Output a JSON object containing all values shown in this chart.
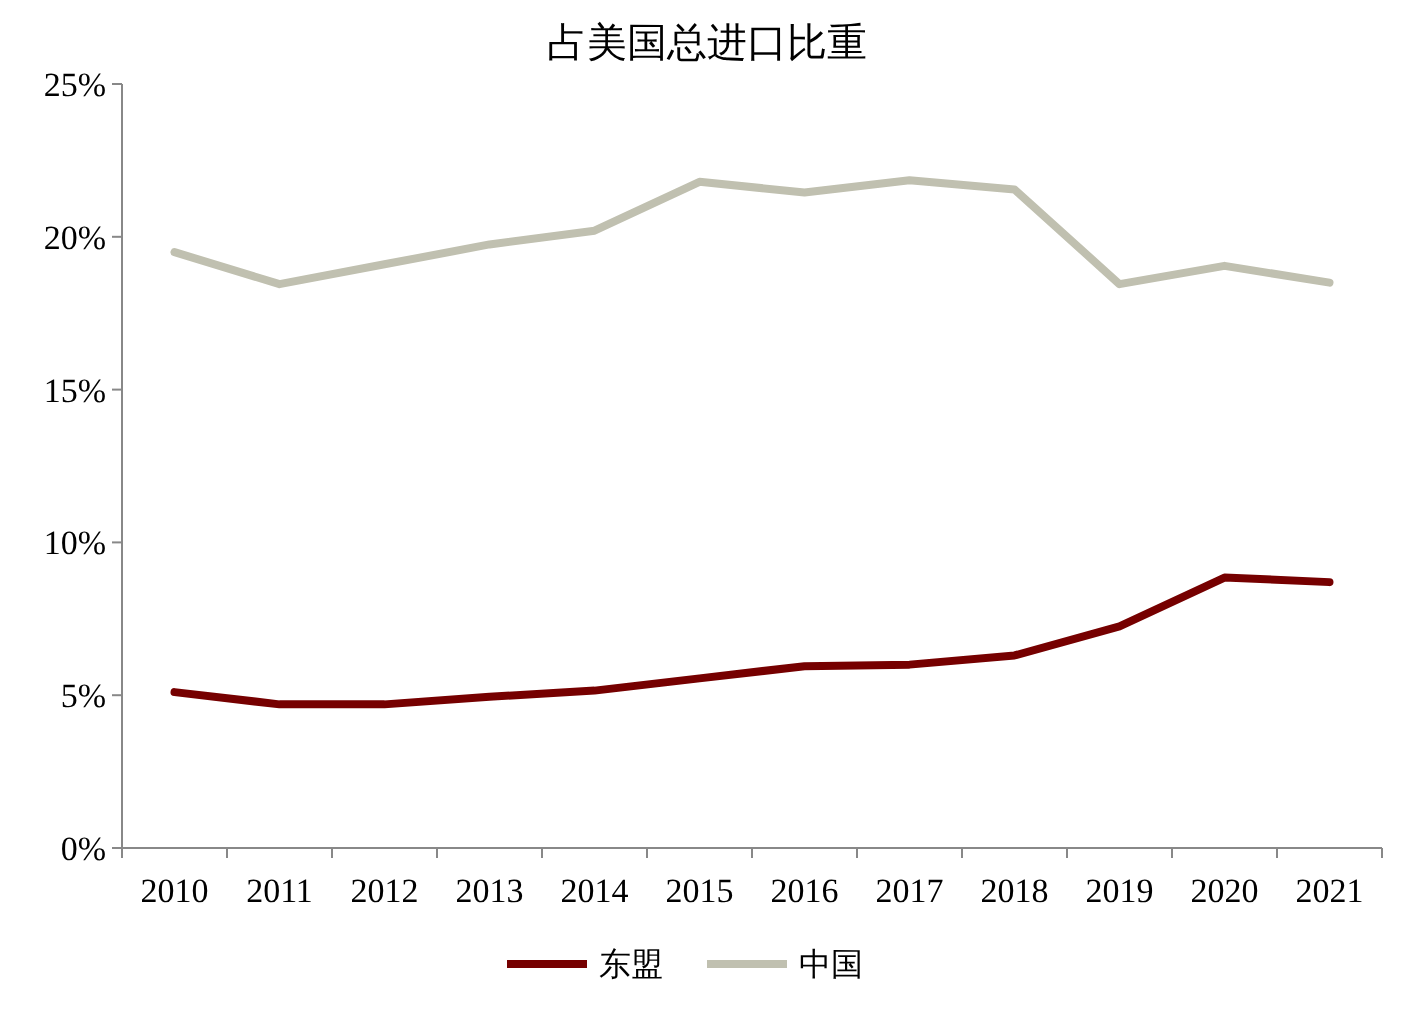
{
  "chart_data": {
    "type": "line",
    "title": "占美国总进口比重",
    "categories": [
      "2010",
      "2011",
      "2012",
      "2013",
      "2014",
      "2015",
      "2016",
      "2017",
      "2018",
      "2019",
      "2020",
      "2021"
    ],
    "series": [
      {
        "name": "东盟",
        "color": "#760000",
        "values": [
          5.1,
          4.7,
          4.7,
          4.95,
          5.15,
          5.55,
          5.95,
          6.0,
          6.3,
          7.25,
          8.85,
          8.7
        ]
      },
      {
        "name": "中国",
        "color": "#c0c0b0",
        "values": [
          19.5,
          18.45,
          19.1,
          19.75,
          20.2,
          21.8,
          21.45,
          21.85,
          21.55,
          18.45,
          19.05,
          18.5
        ]
      }
    ],
    "ylim": [
      0,
      25
    ],
    "yticks": [
      {
        "value": 0,
        "label": "0%"
      },
      {
        "value": 5,
        "label": "5%"
      },
      {
        "value": 10,
        "label": "10%"
      },
      {
        "value": 15,
        "label": "15%"
      },
      {
        "value": 20,
        "label": "20%"
      },
      {
        "value": 25,
        "label": "25%"
      }
    ],
    "legend": "bottom",
    "grid": false,
    "marker": "none",
    "line_style": "solid"
  }
}
